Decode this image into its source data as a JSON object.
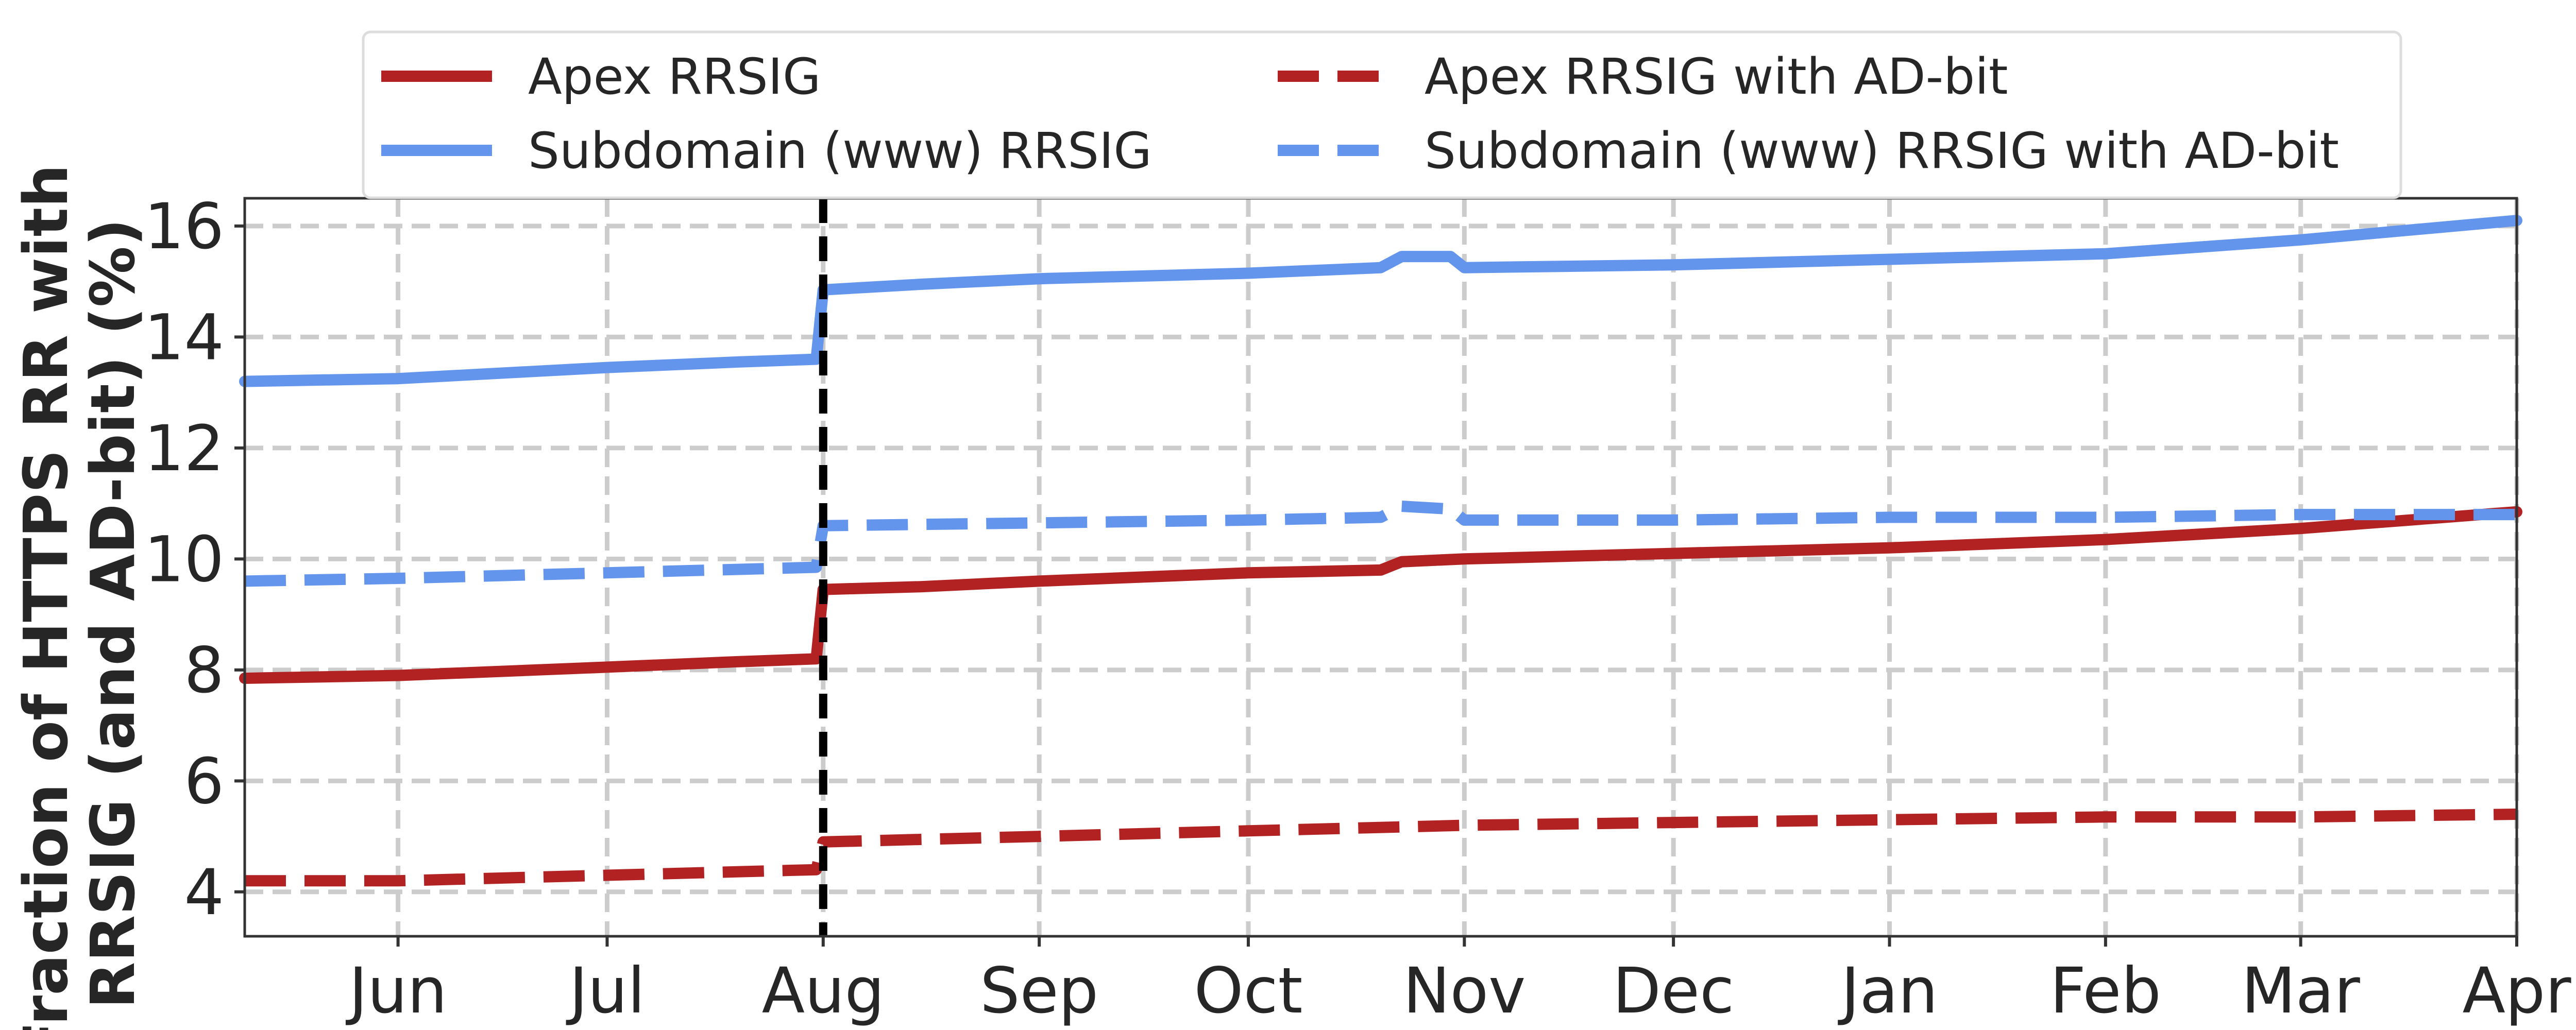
{
  "chart_data": {
    "type": "line",
    "title": "",
    "xlabel": "",
    "ylabel_lines": [
      "Fraction of HTTPS RR with",
      "RRSIG (and AD-bit) (%)"
    ],
    "x_axis": {
      "tick_labels": [
        "Jun",
        "Jul",
        "Aug",
        "Sep",
        "Oct",
        "Nov",
        "Dec",
        "Jan",
        "Feb",
        "Mar",
        "Apr"
      ],
      "range": [
        "May 10",
        "Apr 1"
      ]
    },
    "ylim": [
      3.2,
      16.5
    ],
    "y_ticks": [
      4,
      6,
      8,
      10,
      12,
      14,
      16
    ],
    "grid": true,
    "grid_style": "dashed",
    "legend_position": "top-center",
    "vline": {
      "at": "Aug 1",
      "style": "dashed",
      "color": "#000000"
    },
    "series": [
      {
        "name": "Apex RRSIG",
        "color": "#b22222",
        "style": "solid",
        "points": [
          [
            "May 10",
            7.85
          ],
          [
            "Jun 1",
            7.9
          ],
          [
            "Jul 1",
            8.05
          ],
          [
            "Jul 20",
            8.15
          ],
          [
            "Jul 31",
            8.2
          ],
          [
            "Aug 1",
            9.45
          ],
          [
            "Aug 15",
            9.5
          ],
          [
            "Sep 1",
            9.6
          ],
          [
            "Oct 1",
            9.75
          ],
          [
            "Oct 20",
            9.8
          ],
          [
            "Oct 23",
            9.95
          ],
          [
            "Nov 1",
            10.0
          ],
          [
            "Dec 1",
            10.1
          ],
          [
            "Jan 1",
            10.2
          ],
          [
            "Feb 1",
            10.35
          ],
          [
            "Mar 1",
            10.55
          ],
          [
            "Apr 1",
            10.85
          ]
        ]
      },
      {
        "name": "Subdomain (www) RRSIG",
        "color": "#6495ed",
        "style": "solid",
        "points": [
          [
            "May 10",
            13.2
          ],
          [
            "Jun 1",
            13.25
          ],
          [
            "Jul 1",
            13.45
          ],
          [
            "Jul 20",
            13.55
          ],
          [
            "Jul 31",
            13.6
          ],
          [
            "Aug 1",
            14.85
          ],
          [
            "Aug 15",
            14.95
          ],
          [
            "Sep 1",
            15.05
          ],
          [
            "Oct 1",
            15.15
          ],
          [
            "Oct 20",
            15.25
          ],
          [
            "Oct 23",
            15.45
          ],
          [
            "Oct 30",
            15.45
          ],
          [
            "Nov 1",
            15.25
          ],
          [
            "Dec 1",
            15.3
          ],
          [
            "Jan 1",
            15.4
          ],
          [
            "Feb 1",
            15.5
          ],
          [
            "Mar 1",
            15.75
          ],
          [
            "Apr 1",
            16.1
          ]
        ]
      },
      {
        "name": "Apex RRSIG with AD-bit",
        "color": "#b22222",
        "style": "dashed",
        "points": [
          [
            "May 10",
            4.2
          ],
          [
            "Jun 1",
            4.2
          ],
          [
            "Jul 1",
            4.3
          ],
          [
            "Jul 31",
            4.4
          ],
          [
            "Aug 1",
            4.9
          ],
          [
            "Sep 1",
            5.0
          ],
          [
            "Oct 1",
            5.1
          ],
          [
            "Nov 1",
            5.2
          ],
          [
            "Dec 1",
            5.25
          ],
          [
            "Jan 1",
            5.3
          ],
          [
            "Feb 1",
            5.35
          ],
          [
            "Mar 1",
            5.35
          ],
          [
            "Apr 1",
            5.4
          ]
        ]
      },
      {
        "name": "Subdomain (www) RRSIG with AD-bit",
        "color": "#6495ed",
        "style": "dashed",
        "points": [
          [
            "May 10",
            9.6
          ],
          [
            "Jun 1",
            9.65
          ],
          [
            "Jul 1",
            9.75
          ],
          [
            "Jul 31",
            9.85
          ],
          [
            "Aug 1",
            10.6
          ],
          [
            "Sep 1",
            10.65
          ],
          [
            "Oct 1",
            10.7
          ],
          [
            "Oct 20",
            10.75
          ],
          [
            "Oct 23",
            10.95
          ],
          [
            "Oct 30",
            10.9
          ],
          [
            "Nov 1",
            10.7
          ],
          [
            "Dec 1",
            10.7
          ],
          [
            "Jan 1",
            10.75
          ],
          [
            "Feb 1",
            10.75
          ],
          [
            "Mar 1",
            10.8
          ],
          [
            "Apr 1",
            10.8
          ]
        ]
      }
    ]
  }
}
